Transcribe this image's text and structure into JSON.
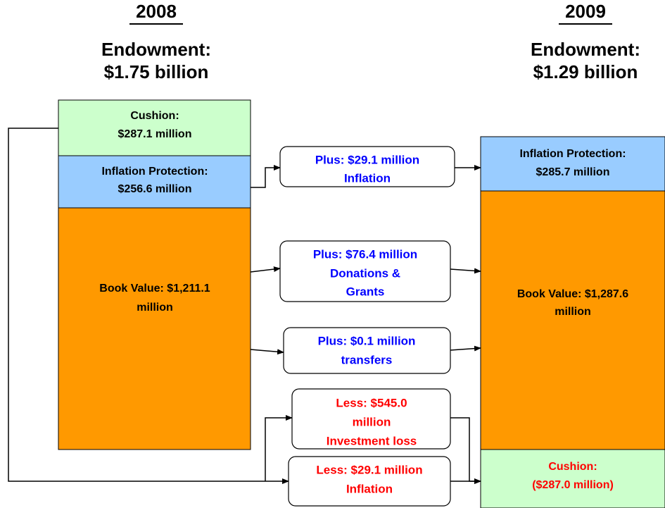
{
  "columns": [
    {
      "year": "2008",
      "label": "Endowment:",
      "amount": "$1.75 billion",
      "blocks": [
        {
          "lines": [
            "Cushion:",
            "$287.1 million"
          ]
        },
        {
          "lines": [
            "Inflation Protection:",
            "$256.6 million"
          ]
        },
        {
          "lines": [
            "Book Value: $1,211.1",
            "million"
          ]
        }
      ]
    },
    {
      "year": "2009",
      "label": "Endowment:",
      "amount": "$1.29 billion",
      "blocks": [
        {
          "lines": [
            "Inflation Protection:",
            "$285.7 million"
          ]
        },
        {
          "lines": [
            "Book Value: $1,287.6",
            "million"
          ]
        },
        {
          "lines": [
            "Cushion:",
            "($287.0 million)"
          ]
        }
      ]
    }
  ],
  "flows": [
    {
      "lines": [
        "Plus: $29.1 million",
        "Inflation"
      ]
    },
    {
      "lines": [
        "Plus: $76.4 million",
        "Donations &",
        "Grants"
      ]
    },
    {
      "lines": [
        "Plus: $0.1 million",
        "transfers"
      ]
    },
    {
      "lines": [
        "Less: $545.0",
        "million",
        "Investment loss"
      ]
    },
    {
      "lines": [
        "Less: $29.1 million",
        "Inflation"
      ]
    }
  ]
}
